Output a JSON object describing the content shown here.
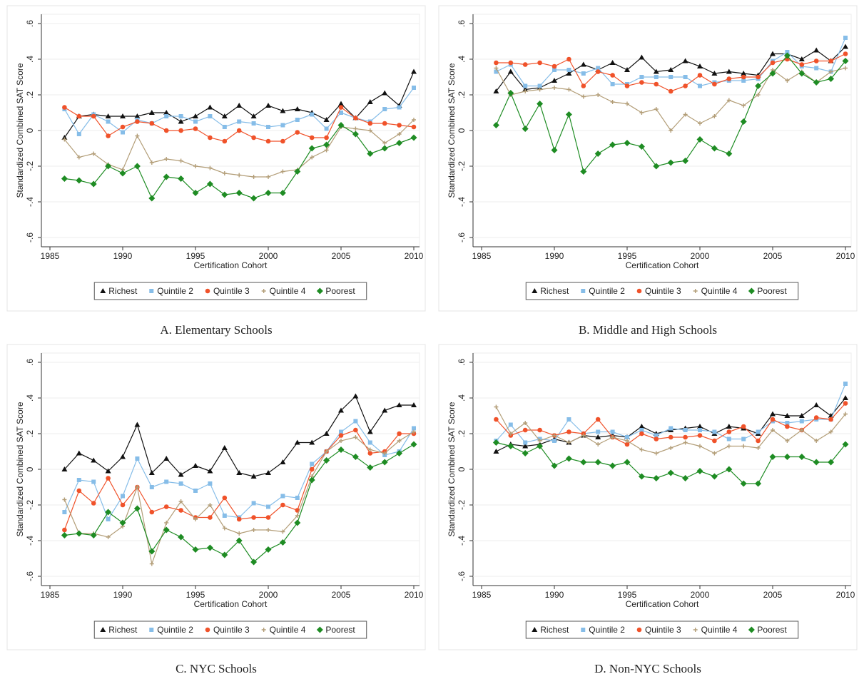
{
  "chart_data": [
    {
      "type": "line",
      "title": "A. Elementary Schools",
      "xlabel": "Certification Cohort",
      "ylabel": "Standardized Combined SAT Score",
      "x": [
        1986,
        1987,
        1988,
        1989,
        1990,
        1991,
        1992,
        1993,
        1994,
        1995,
        1996,
        1997,
        1998,
        1999,
        2000,
        2001,
        2002,
        2003,
        2004,
        2005,
        2006,
        2007,
        2008,
        2009,
        2010
      ],
      "xlim": [
        1985,
        2010
      ],
      "xticks": [
        1985,
        1990,
        1995,
        2000,
        2005,
        2010
      ],
      "ylim": [
        -0.6,
        0.6
      ],
      "yticks": [
        {
          "value": -0.6,
          "label": "-.6"
        },
        {
          "value": -0.4,
          "label": "-.4"
        },
        {
          "value": -0.2,
          "label": "-.2"
        },
        0,
        {
          "value": 0.2,
          "label": ".2"
        },
        {
          "value": 0.4,
          "label": ".4"
        },
        {
          "value": 0.6,
          "label": ".6"
        }
      ],
      "grid": true,
      "legend": "bottom",
      "series": [
        {
          "name": "Richest",
          "color": "#111111",
          "marker": "triangle",
          "values": [
            -0.04,
            0.08,
            0.09,
            0.08,
            0.08,
            0.08,
            0.1,
            0.1,
            0.05,
            0.08,
            0.13,
            0.08,
            0.14,
            0.08,
            0.14,
            0.11,
            0.12,
            0.1,
            0.06,
            0.15,
            0.07,
            0.16,
            0.21,
            0.14,
            0.33
          ]
        },
        {
          "name": "Quintile 2",
          "color": "#86bde8",
          "marker": "square",
          "values": [
            0.12,
            -0.02,
            0.09,
            0.05,
            -0.01,
            0.06,
            0.04,
            0.08,
            0.08,
            0.05,
            0.08,
            0.02,
            0.05,
            0.04,
            0.02,
            0.03,
            0.06,
            0.09,
            0.01,
            0.1,
            0.07,
            0.05,
            0.12,
            0.13,
            0.24
          ]
        },
        {
          "name": "Quintile 3",
          "color": "#f0522a",
          "marker": "circle",
          "values": [
            0.13,
            0.08,
            0.08,
            -0.03,
            0.02,
            0.05,
            0.04,
            0.0,
            0.0,
            0.01,
            -0.04,
            -0.06,
            0.0,
            -0.04,
            -0.06,
            -0.06,
            -0.01,
            -0.04,
            -0.04,
            0.13,
            0.07,
            0.04,
            0.04,
            0.03,
            0.02
          ]
        },
        {
          "name": "Quintile 4",
          "color": "#b39e78",
          "marker": "plus",
          "values": [
            -0.05,
            -0.15,
            -0.13,
            -0.19,
            -0.22,
            -0.03,
            -0.18,
            -0.16,
            -0.17,
            -0.2,
            -0.21,
            -0.24,
            -0.25,
            -0.26,
            -0.26,
            -0.23,
            -0.22,
            -0.15,
            -0.11,
            0.02,
            0.01,
            0.0,
            -0.07,
            -0.02,
            0.06
          ]
        },
        {
          "name": "Poorest",
          "color": "#1e8c23",
          "marker": "diamond",
          "values": [
            -0.27,
            -0.28,
            -0.3,
            -0.2,
            -0.24,
            -0.2,
            -0.38,
            -0.26,
            -0.27,
            -0.35,
            -0.3,
            -0.36,
            -0.35,
            -0.38,
            -0.35,
            -0.35,
            -0.23,
            -0.1,
            -0.08,
            0.03,
            -0.02,
            -0.13,
            -0.1,
            -0.07,
            -0.04
          ]
        }
      ]
    },
    {
      "type": "line",
      "title": "B. Middle and High Schools",
      "xlabel": "Certification Cohort",
      "ylabel": "Standardized Combined SAT Score",
      "x": [
        1986,
        1987,
        1988,
        1989,
        1990,
        1991,
        1992,
        1993,
        1994,
        1995,
        1996,
        1997,
        1998,
        1999,
        2000,
        2001,
        2002,
        2003,
        2004,
        2005,
        2006,
        2007,
        2008,
        2009,
        2010
      ],
      "xlim": [
        1985,
        2010
      ],
      "xticks": [
        1985,
        1990,
        1995,
        2000,
        2005,
        2010
      ],
      "ylim": [
        -0.6,
        0.6
      ],
      "yticks": [
        {
          "value": -0.6,
          "label": "-.6"
        },
        {
          "value": -0.4,
          "label": "-.4"
        },
        {
          "value": -0.2,
          "label": "-.2"
        },
        0,
        {
          "value": 0.2,
          "label": ".2"
        },
        {
          "value": 0.4,
          "label": ".4"
        },
        {
          "value": 0.6,
          "label": ".6"
        }
      ],
      "grid": true,
      "legend": "bottom",
      "series": [
        {
          "name": "Richest",
          "color": "#111111",
          "marker": "triangle",
          "values": [
            0.22,
            0.33,
            0.23,
            0.24,
            0.28,
            0.32,
            0.37,
            0.34,
            0.38,
            0.34,
            0.41,
            0.33,
            0.34,
            0.39,
            0.36,
            0.32,
            0.33,
            0.32,
            0.31,
            0.43,
            0.43,
            0.4,
            0.45,
            0.39,
            0.47
          ]
        },
        {
          "name": "Quintile 2",
          "color": "#86bde8",
          "marker": "square",
          "values": [
            0.33,
            0.37,
            0.25,
            0.25,
            0.34,
            0.34,
            0.32,
            0.35,
            0.26,
            0.26,
            0.3,
            0.3,
            0.3,
            0.3,
            0.25,
            0.27,
            0.28,
            0.28,
            0.29,
            0.39,
            0.44,
            0.36,
            0.35,
            0.33,
            0.52
          ]
        },
        {
          "name": "Quintile 3",
          "color": "#f0522a",
          "marker": "circle",
          "values": [
            0.38,
            0.38,
            0.37,
            0.38,
            0.36,
            0.4,
            0.25,
            0.33,
            0.31,
            0.25,
            0.27,
            0.26,
            0.22,
            0.25,
            0.31,
            0.26,
            0.29,
            0.3,
            0.3,
            0.38,
            0.4,
            0.37,
            0.39,
            0.39,
            0.43
          ]
        },
        {
          "name": "Quintile 4",
          "color": "#b39e78",
          "marker": "plus",
          "values": [
            0.35,
            0.2,
            0.22,
            0.23,
            0.24,
            0.23,
            0.19,
            0.2,
            0.16,
            0.15,
            0.1,
            0.12,
            0.0,
            0.09,
            0.04,
            0.08,
            0.17,
            0.14,
            0.2,
            0.34,
            0.28,
            0.33,
            0.27,
            0.33,
            0.35
          ]
        },
        {
          "name": "Poorest",
          "color": "#1e8c23",
          "marker": "diamond",
          "values": [
            0.03,
            0.21,
            0.01,
            0.15,
            -0.11,
            0.09,
            -0.23,
            -0.13,
            -0.08,
            -0.07,
            -0.09,
            -0.2,
            -0.18,
            -0.17,
            -0.05,
            -0.1,
            -0.13,
            0.05,
            0.25,
            0.32,
            0.42,
            0.32,
            0.27,
            0.29,
            0.39
          ]
        }
      ]
    },
    {
      "type": "line",
      "title": "C. NYC Schools",
      "xlabel": "Certification Cohort",
      "ylabel": "Standardized Combined SAT Score",
      "x": [
        1986,
        1987,
        1988,
        1989,
        1990,
        1991,
        1992,
        1993,
        1994,
        1995,
        1996,
        1997,
        1998,
        1999,
        2000,
        2001,
        2002,
        2003,
        2004,
        2005,
        2006,
        2007,
        2008,
        2009,
        2010
      ],
      "xlim": [
        1985,
        2010
      ],
      "xticks": [
        1985,
        1990,
        1995,
        2000,
        2005,
        2010
      ],
      "ylim": [
        -0.6,
        0.6
      ],
      "yticks": [
        {
          "value": -0.6,
          "label": "-.6"
        },
        {
          "value": -0.4,
          "label": "-.4"
        },
        {
          "value": -0.2,
          "label": "-.2"
        },
        0,
        {
          "value": 0.2,
          "label": ".2"
        },
        {
          "value": 0.4,
          "label": ".4"
        },
        {
          "value": 0.6,
          "label": ".6"
        }
      ],
      "grid": true,
      "legend": "bottom",
      "series": [
        {
          "name": "Richest",
          "color": "#111111",
          "marker": "triangle",
          "values": [
            0.0,
            0.09,
            0.05,
            -0.01,
            0.07,
            0.25,
            -0.02,
            0.06,
            -0.03,
            0.02,
            -0.01,
            0.12,
            -0.02,
            -0.04,
            -0.02,
            0.04,
            0.15,
            0.15,
            0.2,
            0.33,
            0.41,
            0.21,
            0.33,
            0.36,
            0.36
          ]
        },
        {
          "name": "Quintile 2",
          "color": "#86bde8",
          "marker": "square",
          "values": [
            -0.24,
            -0.06,
            -0.07,
            -0.28,
            -0.15,
            0.06,
            -0.1,
            -0.07,
            -0.08,
            -0.12,
            -0.08,
            -0.26,
            -0.27,
            -0.19,
            -0.21,
            -0.15,
            -0.16,
            0.03,
            0.1,
            0.21,
            0.27,
            0.15,
            0.08,
            0.1,
            0.23
          ]
        },
        {
          "name": "Quintile 3",
          "color": "#f0522a",
          "marker": "circle",
          "values": [
            -0.34,
            -0.12,
            -0.19,
            -0.05,
            -0.2,
            -0.1,
            -0.24,
            -0.21,
            -0.23,
            -0.27,
            -0.27,
            -0.16,
            -0.28,
            -0.27,
            -0.27,
            -0.2,
            -0.23,
            0.0,
            0.1,
            0.19,
            0.22,
            0.09,
            0.1,
            0.2,
            0.2
          ]
        },
        {
          "name": "Quintile 4",
          "color": "#b39e78",
          "marker": "plus",
          "values": [
            -0.17,
            -0.36,
            -0.36,
            -0.38,
            -0.32,
            -0.1,
            -0.53,
            -0.3,
            -0.18,
            -0.28,
            -0.2,
            -0.33,
            -0.36,
            -0.34,
            -0.34,
            -0.35,
            -0.26,
            -0.04,
            0.1,
            0.16,
            0.18,
            0.11,
            0.09,
            0.16,
            0.21
          ]
        },
        {
          "name": "Poorest",
          "color": "#1e8c23",
          "marker": "diamond",
          "values": [
            -0.37,
            -0.36,
            -0.37,
            -0.24,
            -0.3,
            -0.22,
            -0.46,
            -0.34,
            -0.38,
            -0.45,
            -0.44,
            -0.48,
            -0.4,
            -0.52,
            -0.45,
            -0.41,
            -0.3,
            -0.06,
            0.05,
            0.11,
            0.07,
            0.01,
            0.04,
            0.09,
            0.14
          ]
        }
      ]
    },
    {
      "type": "line",
      "title": "D. Non-NYC Schools",
      "xlabel": "Certification Cohort",
      "ylabel": "Standardized Combined SAT Score",
      "x": [
        1986,
        1987,
        1988,
        1989,
        1990,
        1991,
        1992,
        1993,
        1994,
        1995,
        1996,
        1997,
        1998,
        1999,
        2000,
        2001,
        2002,
        2003,
        2004,
        2005,
        2006,
        2007,
        2008,
        2009,
        2010
      ],
      "xlim": [
        1985,
        2010
      ],
      "xticks": [
        1985,
        1990,
        1995,
        2000,
        2005,
        2010
      ],
      "ylim": [
        -0.6,
        0.6
      ],
      "yticks": [
        {
          "value": -0.6,
          "label": "-.6"
        },
        {
          "value": -0.4,
          "label": "-.4"
        },
        {
          "value": -0.2,
          "label": "-.2"
        },
        0,
        {
          "value": 0.2,
          "label": ".2"
        },
        {
          "value": 0.4,
          "label": ".4"
        },
        {
          "value": 0.6,
          "label": ".6"
        }
      ],
      "grid": true,
      "legend": "bottom",
      "series": [
        {
          "name": "Richest",
          "color": "#111111",
          "marker": "triangle",
          "values": [
            0.1,
            0.14,
            0.13,
            0.14,
            0.17,
            0.15,
            0.19,
            0.18,
            0.19,
            0.18,
            0.24,
            0.2,
            0.22,
            0.23,
            0.24,
            0.2,
            0.24,
            0.23,
            0.2,
            0.31,
            0.3,
            0.3,
            0.36,
            0.3,
            0.4
          ]
        },
        {
          "name": "Quintile 2",
          "color": "#86bde8",
          "marker": "square",
          "values": [
            0.16,
            0.25,
            0.15,
            0.17,
            0.16,
            0.28,
            0.2,
            0.21,
            0.21,
            0.18,
            0.22,
            0.19,
            0.23,
            0.22,
            0.22,
            0.21,
            0.17,
            0.17,
            0.21,
            0.27,
            0.26,
            0.27,
            0.28,
            0.28,
            0.48
          ]
        },
        {
          "name": "Quintile 3",
          "color": "#f0522a",
          "marker": "circle",
          "values": [
            0.28,
            0.19,
            0.22,
            0.22,
            0.19,
            0.21,
            0.2,
            0.28,
            0.18,
            0.14,
            0.2,
            0.17,
            0.18,
            0.18,
            0.19,
            0.16,
            0.21,
            0.24,
            0.16,
            0.28,
            0.24,
            0.22,
            0.29,
            0.28,
            0.37
          ]
        },
        {
          "name": "Quintile 4",
          "color": "#b39e78",
          "marker": "plus",
          "values": [
            0.35,
            0.2,
            0.26,
            0.16,
            0.19,
            0.15,
            0.19,
            0.14,
            0.18,
            0.16,
            0.11,
            0.09,
            0.12,
            0.15,
            0.13,
            0.09,
            0.13,
            0.13,
            0.12,
            0.22,
            0.16,
            0.22,
            0.16,
            0.21,
            0.31
          ]
        },
        {
          "name": "Poorest",
          "color": "#1e8c23",
          "marker": "diamond",
          "values": [
            0.15,
            0.13,
            0.09,
            0.13,
            0.02,
            0.06,
            0.04,
            0.04,
            0.02,
            0.04,
            -0.04,
            -0.05,
            -0.02,
            -0.05,
            -0.01,
            -0.04,
            0.0,
            -0.08,
            -0.08,
            0.07,
            0.07,
            0.07,
            0.04,
            0.04,
            0.14
          ]
        }
      ]
    }
  ]
}
